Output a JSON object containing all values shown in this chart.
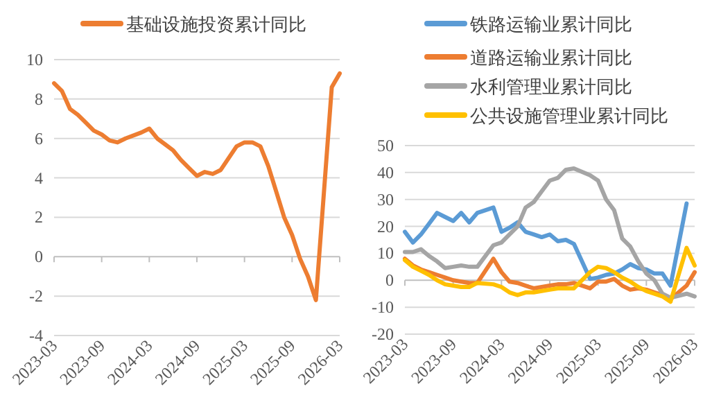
{
  "chart_data": [
    {
      "type": "line",
      "x": [
        "2023-03",
        "2023-04",
        "2023-05",
        "2023-06",
        "2023-07",
        "2023-08",
        "2023-09",
        "2023-10",
        "2023-11",
        "2023-12",
        "2024-02",
        "2024-03",
        "2024-04",
        "2024-05",
        "2024-06",
        "2024-07",
        "2024-08",
        "2024-09",
        "2024-10",
        "2024-11",
        "2024-12",
        "2025-02",
        "2025-03",
        "2025-04",
        "2025-05",
        "2025-06",
        "2025-07",
        "2025-08",
        "2025-09",
        "2025-10",
        "2025-11",
        "2025-12",
        "2026-02",
        "2026-03"
      ],
      "series": [
        {
          "name": "基础设施投资累计同比",
          "color": "#ed7d31",
          "values": [
            8.8,
            8.4,
            7.5,
            7.2,
            6.8,
            6.4,
            6.2,
            5.9,
            5.8,
            6.0,
            6.3,
            6.5,
            6.0,
            5.7,
            5.4,
            4.9,
            4.5,
            4.1,
            4.3,
            4.2,
            4.4,
            5.6,
            5.8,
            5.8,
            5.6,
            4.6,
            3.3,
            2.0,
            1.1,
            -0.1,
            -1.0,
            -2.2,
            8.6,
            9.3
          ]
        }
      ],
      "xlim": [
        "2023-03",
        "2026-03"
      ],
      "xticks": [
        "2023-03",
        "2023-09",
        "2024-03",
        "2024-09",
        "2025-03",
        "2025-09",
        "2026-03"
      ],
      "ylim": [
        -4,
        10
      ],
      "yticks": [
        -4,
        -2,
        0,
        2,
        4,
        6,
        8,
        10
      ],
      "grid": "y",
      "legend": "top"
    },
    {
      "type": "line",
      "x": [
        "2023-03",
        "2023-04",
        "2023-05",
        "2023-06",
        "2023-07",
        "2023-08",
        "2023-09",
        "2023-10",
        "2023-11",
        "2023-12",
        "2024-02",
        "2024-03",
        "2024-04",
        "2024-05",
        "2024-06",
        "2024-07",
        "2024-08",
        "2024-09",
        "2024-10",
        "2024-11",
        "2024-12",
        "2025-02",
        "2025-03",
        "2025-04",
        "2025-05",
        "2025-06",
        "2025-07",
        "2025-08",
        "2025-09",
        "2025-10",
        "2025-11",
        "2025-12",
        "2026-02",
        "2026-03"
      ],
      "series": [
        {
          "name": "铁路运输业累计同比",
          "color": "#5b9bd5",
          "values": [
            18,
            14,
            17,
            21,
            25,
            23.5,
            22,
            25,
            21.5,
            25,
            27,
            18,
            19.5,
            21.5,
            18,
            17,
            16,
            17,
            14.5,
            15,
            13.5,
            0.5,
            1,
            2,
            2.5,
            4,
            6,
            4.5,
            4,
            2.5,
            2.5,
            -2,
            28.5,
            null
          ]
        },
        {
          "name": "道路运输业累计同比",
          "color": "#ed7d31",
          "values": [
            8,
            5.5,
            4,
            3,
            2,
            1,
            0,
            -0.5,
            -1,
            -1,
            8,
            3,
            -0.5,
            -1,
            -2,
            -3,
            -2.5,
            -2,
            -1.5,
            -1.5,
            -1,
            -3,
            -0.5,
            -0.5,
            0.5,
            -2,
            -3.5,
            -3,
            -3.5,
            -4.5,
            -5.5,
            -7,
            -2,
            3
          ]
        },
        {
          "name": "水利管理业累计同比",
          "color": "#a5a5a5",
          "values": [
            10.5,
            10.5,
            11.5,
            9,
            7,
            4.5,
            5,
            5.5,
            5,
            5,
            13,
            14,
            17,
            20,
            27,
            29,
            33,
            37,
            38,
            41,
            41.5,
            39,
            37,
            30,
            26,
            15.5,
            12.5,
            7,
            2.5,
            0,
            -5,
            -6.5,
            -5,
            -6
          ]
        },
        {
          "name": "公共设施管理业累计同比",
          "color": "#ffc000",
          "values": [
            7.5,
            5,
            3.5,
            2,
            0,
            -1.5,
            -2,
            -2.5,
            -2.5,
            -1,
            -1.5,
            -2.5,
            -4.5,
            -5.5,
            -4.5,
            -4.5,
            -4,
            -3.5,
            -3,
            -3,
            -3,
            3,
            5,
            4.5,
            3,
            1,
            -0.5,
            -2.5,
            -4,
            -5,
            -6,
            -8,
            12,
            5.5
          ]
        }
      ],
      "xlim": [
        "2023-03",
        "2026-03"
      ],
      "xticks": [
        "2023-03",
        "2023-09",
        "2024-03",
        "2024-09",
        "2025-03",
        "2025-09",
        "2026-03"
      ],
      "ylim": [
        -20,
        50
      ],
      "yticks": [
        -20,
        -10,
        0,
        10,
        20,
        30,
        40,
        50
      ],
      "grid": "y",
      "legend": "top"
    }
  ]
}
